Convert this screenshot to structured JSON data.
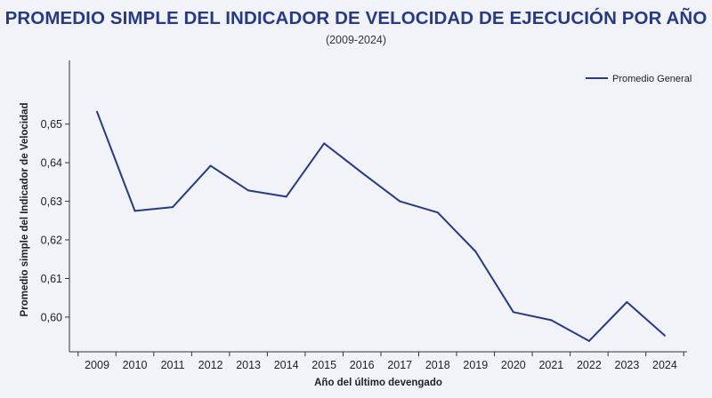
{
  "chart_data": {
    "type": "line",
    "title": "PROMEDIO SIMPLE DEL INDICADOR DE VELOCIDAD DE EJECUCIÓN POR AÑO",
    "subtitle": "(2009-2024)",
    "xlabel": "Año del último devengado",
    "ylabel": "Promedio simple del Indicador de Velocidad",
    "categories": [
      "2009",
      "2010",
      "2011",
      "2012",
      "2013",
      "2014",
      "2015",
      "2016",
      "2017",
      "2018",
      "2019",
      "2020",
      "2021",
      "2022",
      "2023",
      "2024"
    ],
    "series": [
      {
        "name": "Promedio General",
        "color": "#283a84",
        "values": [
          0.6532,
          0.6275,
          0.6285,
          0.6392,
          0.6328,
          0.6312,
          0.645,
          0.6374,
          0.63,
          0.6271,
          0.617,
          0.6013,
          0.5992,
          0.5938,
          0.6039,
          0.5952
        ]
      }
    ],
    "ylim": [
      0.591,
      0.6665
    ],
    "yticks": [
      0.6,
      0.61,
      0.62,
      0.63,
      0.64,
      0.65
    ],
    "ytick_labels": [
      "0,60",
      "0,61",
      "0,62",
      "0,63",
      "0,64",
      "0,65"
    ],
    "grid": false,
    "legend_position": "top-right"
  }
}
